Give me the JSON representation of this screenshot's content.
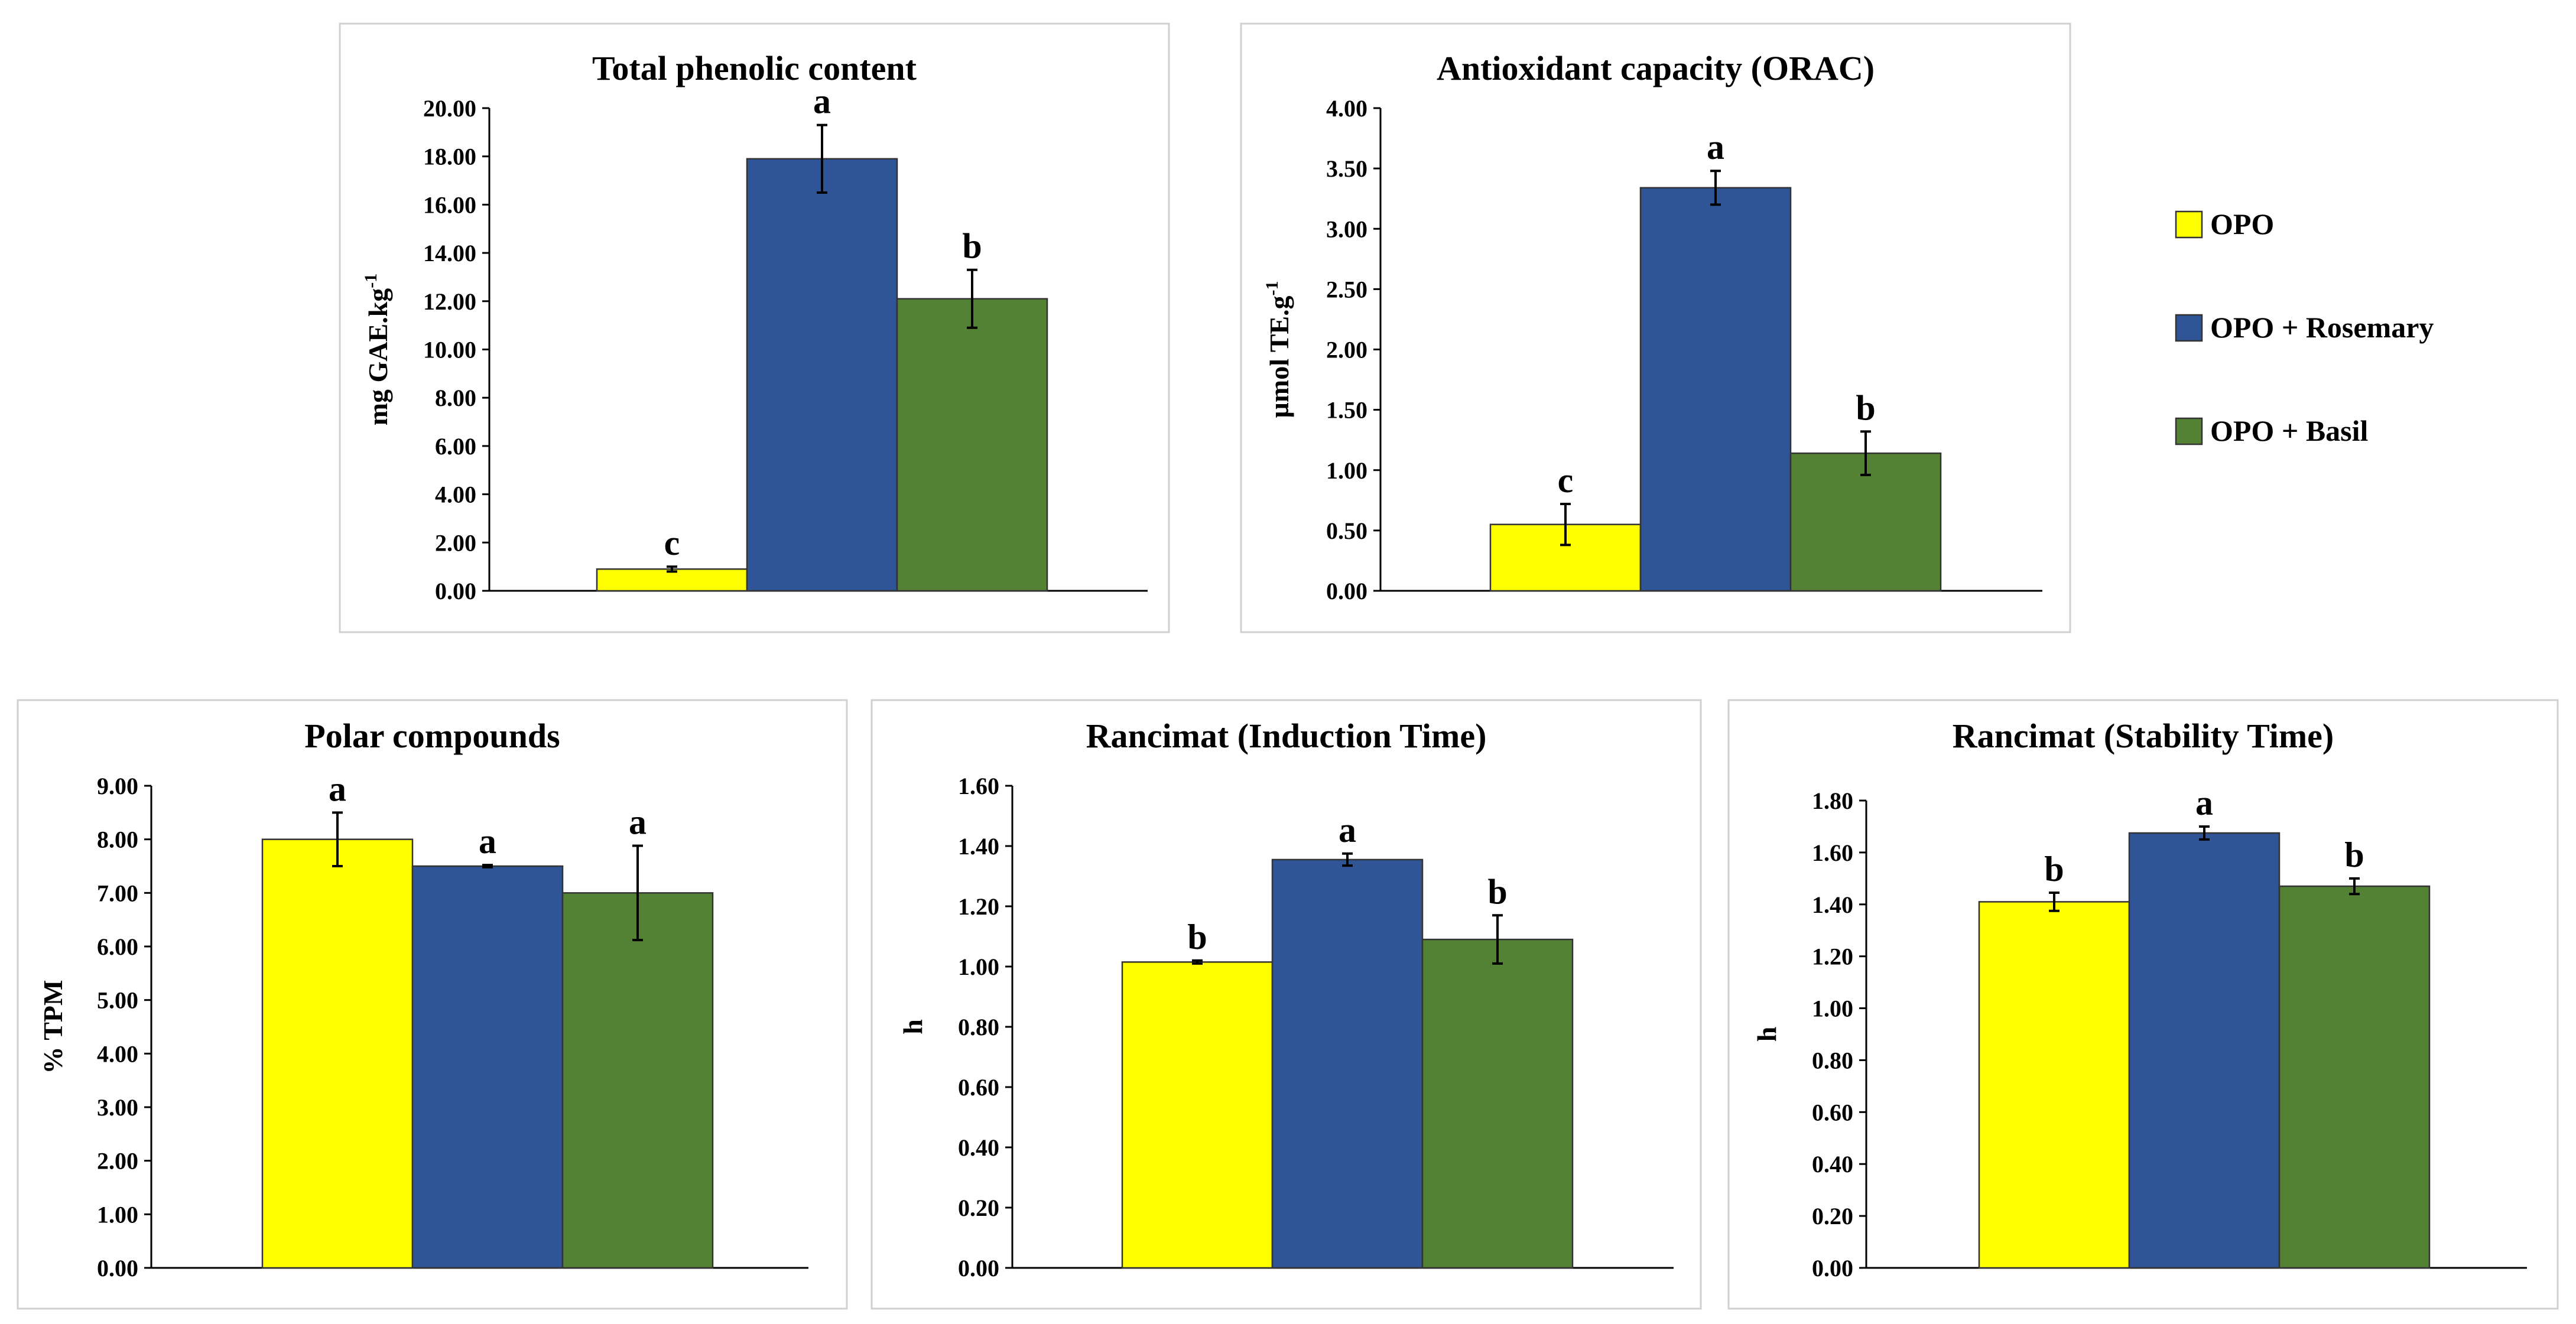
{
  "legend": {
    "items": [
      {
        "label": "OPO",
        "color": "#FFFF00"
      },
      {
        "label": "OPO + Rosemary",
        "color": "#2F5597"
      },
      {
        "label": "OPO + Basil",
        "color": "#548235"
      }
    ]
  },
  "chart_data": [
    {
      "type": "bar",
      "title": "Total phenolic content",
      "ylabel": "mg GAE.kg",
      "ylabel_sup": "-1",
      "ylim": [
        0,
        20
      ],
      "yticks": [
        "0.00",
        "2.00",
        "4.00",
        "6.00",
        "8.00",
        "10.00",
        "12.00",
        "14.00",
        "16.00",
        "18.00",
        "20.00"
      ],
      "series": [
        {
          "name": "OPO",
          "value": 0.9,
          "error": 0.1,
          "letter": "c"
        },
        {
          "name": "OPO + Rosemary",
          "value": 17.9,
          "error": 1.4,
          "letter": "a"
        },
        {
          "name": "OPO + Basil",
          "value": 12.1,
          "error": 1.2,
          "letter": "b"
        }
      ]
    },
    {
      "type": "bar",
      "title": "Antioxidant capacity (ORAC)",
      "ylabel": "µmol TE.g",
      "ylabel_sup": "-1",
      "ylim": [
        0,
        4
      ],
      "yticks": [
        "0.00",
        "0.50",
        "1.00",
        "1.50",
        "2.00",
        "2.50",
        "3.00",
        "3.50",
        "4.00"
      ],
      "series": [
        {
          "name": "OPO",
          "value": 0.55,
          "error": 0.17,
          "letter": "c"
        },
        {
          "name": "OPO + Rosemary",
          "value": 3.34,
          "error": 0.14,
          "letter": "a"
        },
        {
          "name": "OPO + Basil",
          "value": 1.14,
          "error": 0.18,
          "letter": "b"
        }
      ]
    },
    {
      "type": "bar",
      "title": "Polar compounds",
      "ylabel": "% TPM",
      "ylabel_sup": "",
      "ylim": [
        0,
        9
      ],
      "yticks": [
        "0.00",
        "1.00",
        "2.00",
        "3.00",
        "4.00",
        "5.00",
        "6.00",
        "7.00",
        "8.00",
        "9.00"
      ],
      "series": [
        {
          "name": "OPO",
          "value": 8.0,
          "error": 0.5,
          "letter": "a"
        },
        {
          "name": "OPO + Rosemary",
          "value": 7.5,
          "error": 0.02,
          "letter": "a"
        },
        {
          "name": "OPO + Basil",
          "value": 7.0,
          "error": 0.88,
          "letter": "a"
        }
      ]
    },
    {
      "type": "bar",
      "title": "Rancimat (Induction Time)",
      "ylabel": "h",
      "ylabel_sup": "",
      "ylim": [
        0,
        1.6
      ],
      "yticks": [
        "0.00",
        "0.20",
        "0.40",
        "0.60",
        "0.80",
        "1.00",
        "1.20",
        "1.40",
        "1.60"
      ],
      "series": [
        {
          "name": "OPO",
          "value": 1.015,
          "error": 0.005,
          "letter": "b"
        },
        {
          "name": "OPO + Rosemary",
          "value": 1.355,
          "error": 0.02,
          "letter": "a"
        },
        {
          "name": "OPO + Basil",
          "value": 1.09,
          "error": 0.08,
          "letter": "b"
        }
      ]
    },
    {
      "type": "bar",
      "title": "Rancimat (Stability Time)",
      "ylabel": "h",
      "ylabel_sup": "",
      "ylim": [
        0,
        1.8
      ],
      "yticks": [
        "0.00",
        "0.20",
        "0.40",
        "0.60",
        "0.80",
        "1.00",
        "1.20",
        "1.40",
        "1.60",
        "1.80"
      ],
      "series": [
        {
          "name": "OPO",
          "value": 1.41,
          "error": 0.035,
          "letter": "b"
        },
        {
          "name": "OPO + Rosemary",
          "value": 1.675,
          "error": 0.025,
          "letter": "a"
        },
        {
          "name": "OPO + Basil",
          "value": 1.47,
          "error": 0.03,
          "letter": "b"
        }
      ]
    }
  ]
}
